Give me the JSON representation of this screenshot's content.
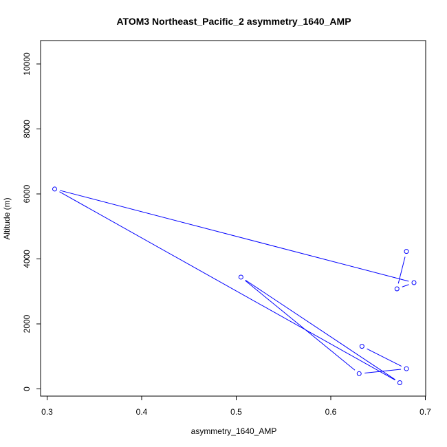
{
  "chart_data": {
    "type": "line",
    "title": "ATOM3 Northeast_Pacific_2 asymmetry_1640_AMP",
    "xlabel": "asymmetry_1640_AMP",
    "ylabel": "Altitude (m)",
    "xlim": [
      0.3,
      0.7
    ],
    "ylim": [
      0,
      10000
    ],
    "x_ticks": [
      0.3,
      0.4,
      0.5,
      0.6,
      0.7
    ],
    "x_tick_labels": [
      "0.3",
      "0.4",
      "0.5",
      "0.6",
      "0.7"
    ],
    "y_ticks": [
      0,
      2000,
      4000,
      6000,
      8000,
      10000
    ],
    "y_tick_labels": [
      "0",
      "2000",
      "4000",
      "6000",
      "8000",
      "10000"
    ],
    "grid": false,
    "color": "#0000ff",
    "markers": "open-circle",
    "series": [
      {
        "points": [
          {
            "x": 0.68,
            "y": 4230
          },
          {
            "x": 0.67,
            "y": 3080
          },
          {
            "x": 0.688,
            "y": 3270
          },
          {
            "x": 0.308,
            "y": 6150
          },
          {
            "x": 0.673,
            "y": 190
          },
          {
            "x": 0.505,
            "y": 3440
          },
          {
            "x": 0.63,
            "y": 470
          },
          {
            "x": 0.68,
            "y": 620
          },
          {
            "x": 0.633,
            "y": 1310
          }
        ]
      }
    ]
  }
}
